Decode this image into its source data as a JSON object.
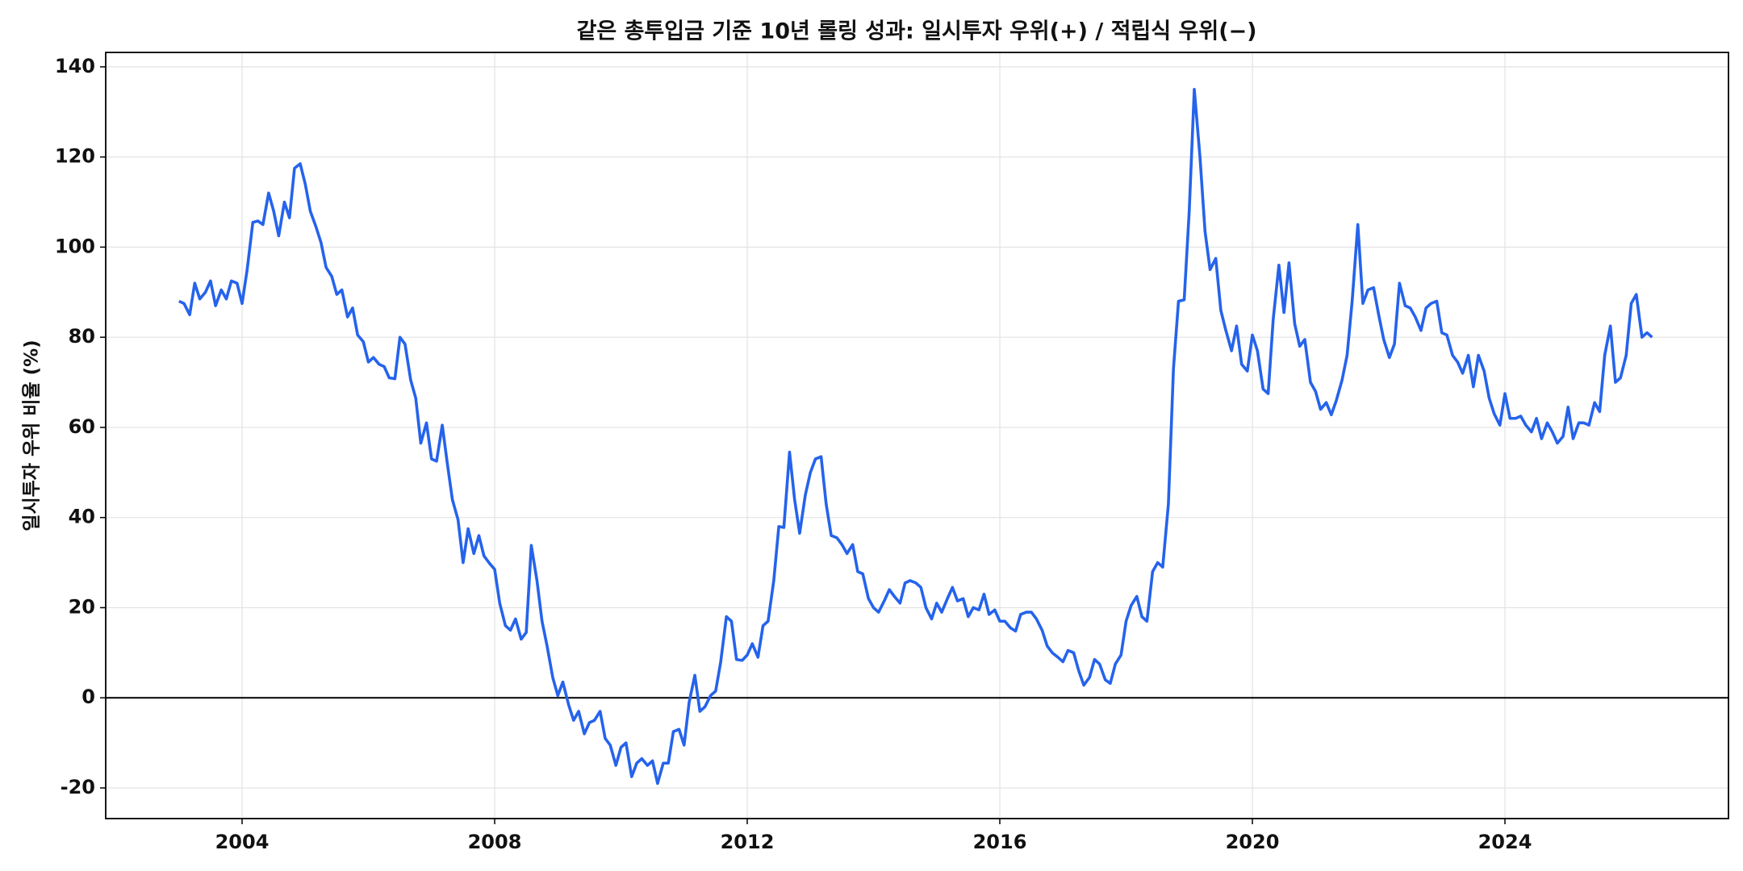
{
  "chart_data": {
    "type": "line",
    "title": "같은 총투입금 기준 10년 롤링 성과: 일시투자 우위(+) / 적립식 우위(−)",
    "y_label": "일시투자 우위 비율 (%)",
    "color": "#2563eb",
    "grid": true,
    "hline": 0,
    "xlim": [
      2001.84,
      2027.54
    ],
    "xticks": [
      2004,
      2008,
      2012,
      2016,
      2020,
      2024
    ],
    "ylim": [
      -26.8,
      143.2
    ],
    "yticks": [
      -20,
      0,
      20,
      40,
      60,
      80,
      100,
      120,
      140
    ],
    "x": [
      2003.0,
      2003.08,
      2003.17,
      2003.25,
      2003.33,
      2003.42,
      2003.5,
      2003.58,
      2003.67,
      2003.75,
      2003.83,
      2003.92,
      2004.0,
      2004.08,
      2004.17,
      2004.25,
      2004.33,
      2004.42,
      2004.5,
      2004.58,
      2004.67,
      2004.75,
      2004.83,
      2004.92,
      2005.0,
      2005.08,
      2005.17,
      2005.25,
      2005.33,
      2005.42,
      2005.5,
      2005.58,
      2005.67,
      2005.75,
      2005.83,
      2005.92,
      2006.0,
      2006.08,
      2006.17,
      2006.25,
      2006.33,
      2006.42,
      2006.5,
      2006.58,
      2006.67,
      2006.75,
      2006.83,
      2006.92,
      2007.0,
      2007.08,
      2007.17,
      2007.25,
      2007.33,
      2007.42,
      2007.5,
      2007.58,
      2007.67,
      2007.75,
      2007.83,
      2007.92,
      2008.0,
      2008.08,
      2008.17,
      2008.25,
      2008.33,
      2008.42,
      2008.5,
      2008.58,
      2008.67,
      2008.75,
      2008.83,
      2008.92,
      2009.0,
      2009.08,
      2009.17,
      2009.25,
      2009.33,
      2009.42,
      2009.5,
      2009.58,
      2009.67,
      2009.75,
      2009.83,
      2009.92,
      2010.0,
      2010.08,
      2010.17,
      2010.25,
      2010.33,
      2010.42,
      2010.5,
      2010.58,
      2010.67,
      2010.75,
      2010.83,
      2010.92,
      2011.0,
      2011.08,
      2011.17,
      2011.25,
      2011.33,
      2011.42,
      2011.5,
      2011.58,
      2011.67,
      2011.75,
      2011.83,
      2011.92,
      2012.0,
      2012.08,
      2012.17,
      2012.25,
      2012.33,
      2012.42,
      2012.5,
      2012.58,
      2012.67,
      2012.75,
      2012.83,
      2012.92,
      2013.0,
      2013.08,
      2013.17,
      2013.25,
      2013.33,
      2013.42,
      2013.5,
      2013.58,
      2013.67,
      2013.75,
      2013.83,
      2013.92,
      2014.0,
      2014.08,
      2014.17,
      2014.25,
      2014.33,
      2014.42,
      2014.5,
      2014.58,
      2014.67,
      2014.75,
      2014.83,
      2014.92,
      2015.0,
      2015.08,
      2015.17,
      2015.25,
      2015.33,
      2015.42,
      2015.5,
      2015.58,
      2015.67,
      2015.75,
      2015.83,
      2015.92,
      2016.0,
      2016.08,
      2016.17,
      2016.25,
      2016.33,
      2016.42,
      2016.5,
      2016.58,
      2016.67,
      2016.75,
      2016.83,
      2016.92,
      2017.0,
      2017.08,
      2017.17,
      2017.25,
      2017.33,
      2017.42,
      2017.5,
      2017.58,
      2017.67,
      2017.75,
      2017.83,
      2017.92,
      2018.0,
      2018.08,
      2018.17,
      2018.25,
      2018.33,
      2018.42,
      2018.5,
      2018.58,
      2018.67,
      2018.75,
      2018.83,
      2018.92,
      2019.0,
      2019.08,
      2019.17,
      2019.25,
      2019.33,
      2019.42,
      2019.5,
      2019.58,
      2019.67,
      2019.75,
      2019.83,
      2019.92,
      2020.0,
      2020.08,
      2020.17,
      2020.25,
      2020.33,
      2020.42,
      2020.5,
      2020.58,
      2020.67,
      2020.75,
      2020.83,
      2020.92,
      2021.0,
      2021.08,
      2021.17,
      2021.25,
      2021.33,
      2021.42,
      2021.5,
      2021.58,
      2021.67,
      2021.75,
      2021.83,
      2021.92,
      2022.0,
      2022.08,
      2022.17,
      2022.25,
      2022.33,
      2022.42,
      2022.5,
      2022.58,
      2022.67,
      2022.75,
      2022.83,
      2022.92,
      2023.0,
      2023.08,
      2023.17,
      2023.25,
      2023.33,
      2023.42,
      2023.5,
      2023.58,
      2023.67,
      2023.75,
      2023.83,
      2023.92,
      2024.0,
      2024.08,
      2024.17,
      2024.25,
      2024.33,
      2024.42,
      2024.5,
      2024.58,
      2024.67,
      2024.75,
      2024.83,
      2024.92,
      2025.0,
      2025.08,
      2025.17,
      2025.25,
      2025.33,
      2025.42,
      2025.5,
      2025.58,
      2025.67,
      2025.75,
      2025.83,
      2025.92,
      2026.0,
      2026.08,
      2026.17,
      2026.25,
      2026.33
    ],
    "values": [
      88,
      87.5,
      85,
      92,
      88.5,
      90,
      92.5,
      87,
      90.5,
      88.5,
      92.5,
      92,
      87.5,
      95,
      105.5,
      105.8,
      105,
      112,
      108,
      102.5,
      110,
      106.5,
      117.5,
      118.5,
      114,
      108,
      104.5,
      101,
      95.5,
      93.5,
      89.5,
      90.5,
      84.5,
      86.5,
      80.5,
      79,
      74.5,
      75.5,
      74,
      73.5,
      71,
      70.8,
      80,
      78.5,
      70.5,
      66.5,
      56.5,
      61,
      53,
      52.5,
      60.5,
      52,
      44,
      39.5,
      30,
      37.5,
      32,
      36,
      31.5,
      29.8,
      28.5,
      21,
      16,
      15,
      17.5,
      13,
      14.5,
      33.8,
      26,
      17,
      11.5,
      4.5,
      0.5,
      3.5,
      -1.5,
      -5,
      -3,
      -8,
      -5.5,
      -5,
      -3,
      -9,
      -10.5,
      -15,
      -11,
      -10,
      -17.5,
      -14.5,
      -13.5,
      -15,
      -14,
      -19,
      -14.5,
      -14.5,
      -7.5,
      -7,
      -10.5,
      -1,
      5,
      -3,
      -2,
      0.5,
      1.5,
      8,
      18,
      17,
      8.5,
      8.3,
      9.5,
      12,
      9,
      16,
      17,
      26,
      38,
      37.8,
      54.5,
      44,
      36.5,
      45,
      50,
      53,
      53.5,
      43,
      36,
      35.5,
      34,
      32,
      34,
      28,
      27.5,
      22,
      20,
      19,
      21.5,
      24,
      22.5,
      21,
      25.5,
      26,
      25.5,
      24.5,
      20,
      17.5,
      21,
      19,
      22,
      24.5,
      21.5,
      22,
      18,
      20,
      19.5,
      23,
      18.5,
      19.5,
      17,
      17,
      15.5,
      14.8,
      18.5,
      19,
      19,
      17.5,
      15,
      11.5,
      10,
      9,
      8,
      10.5,
      10,
      6,
      2.8,
      4.5,
      8.5,
      7.5,
      4,
      3.2,
      7.5,
      9.5,
      17,
      20.5,
      22.5,
      18,
      17,
      28,
      30,
      29,
      43,
      73,
      88,
      88.3,
      108,
      135,
      120,
      103.5,
      95,
      97.5,
      86,
      81.5,
      77,
      82.5,
      74,
      72.5,
      80.5,
      77,
      68.5,
      67.5,
      84,
      96,
      85.5,
      96.5,
      83,
      78,
      79.5,
      70,
      68,
      64,
      65.5,
      62.8,
      66,
      70.5,
      76,
      88,
      105,
      87.5,
      90.5,
      91,
      85,
      79.5,
      75.5,
      78.5,
      92,
      87,
      86.5,
      84.5,
      81.5,
      86.5,
      87.5,
      88,
      81,
      80.5,
      76,
      74.5,
      72,
      76,
      69,
      76,
      72.5,
      66.5,
      63,
      60.5,
      67.5,
      62,
      62,
      62.5,
      60.5,
      59,
      62,
      57.5,
      61,
      59,
      56.5,
      58,
      64.5,
      57.5,
      61,
      61,
      60.5,
      65.5,
      63.5,
      76,
      82.5,
      70,
      71,
      76,
      87.5,
      89.5,
      80,
      81,
      80
    ]
  }
}
